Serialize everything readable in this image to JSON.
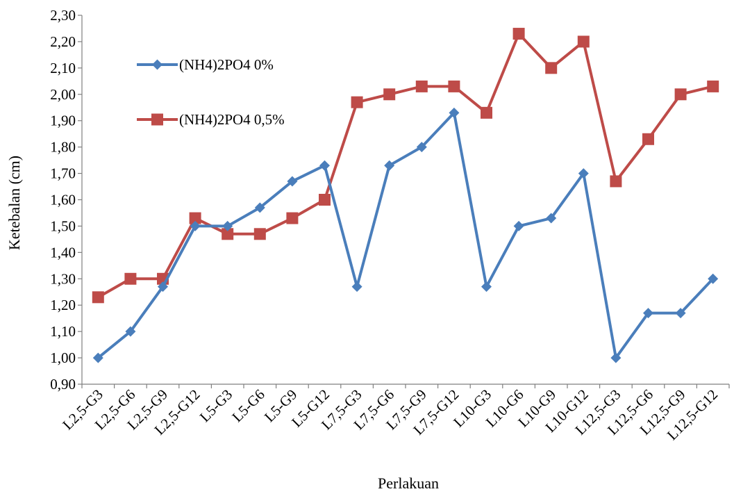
{
  "chart_data": {
    "type": "line",
    "xlabel": "Perlakuan",
    "ylabel": "Ketebalan (cm)",
    "categories": [
      "L2,5-G3",
      "L2,5-G6",
      "L2,5-G9",
      "L2,5-G12",
      "L5-G3",
      "L5-G6",
      "L5-G9",
      "L5-G12",
      "L7,5-G3",
      "L7,5-G6",
      "L7,5-G9",
      "L7,5-G12",
      "L10-G3",
      "L10-G6",
      "L10-G9",
      "L10-G12",
      "L12,5-G3",
      "L12,5-G6",
      "L12,5-G9",
      "L12,5-G12"
    ],
    "ylim": [
      0.9,
      2.3
    ],
    "yticks": [
      "0,90",
      "1,00",
      "1,10",
      "1,20",
      "1,30",
      "1,40",
      "1,50",
      "1,60",
      "1,70",
      "1,80",
      "1,90",
      "2,00",
      "2,10",
      "2,20",
      "2,30"
    ],
    "grid": false,
    "legend_position": "top-left",
    "series": [
      {
        "name": "(NH4)2PO4 0%",
        "color": "#4a7ebb",
        "marker": "diamond",
        "values": [
          1.0,
          1.1,
          1.27,
          1.5,
          1.5,
          1.57,
          1.67,
          1.73,
          1.27,
          1.73,
          1.8,
          1.93,
          1.27,
          1.5,
          1.53,
          1.7,
          1.0,
          1.17,
          1.17,
          1.3
        ]
      },
      {
        "name": "(NH4)2PO4 0,5%",
        "color": "#be4b48",
        "marker": "square",
        "values": [
          1.23,
          1.3,
          1.3,
          1.53,
          1.47,
          1.47,
          1.53,
          1.6,
          1.97,
          2.0,
          2.03,
          2.03,
          1.93,
          2.23,
          2.1,
          2.2,
          1.67,
          1.83,
          2.0,
          2.03
        ]
      }
    ]
  }
}
